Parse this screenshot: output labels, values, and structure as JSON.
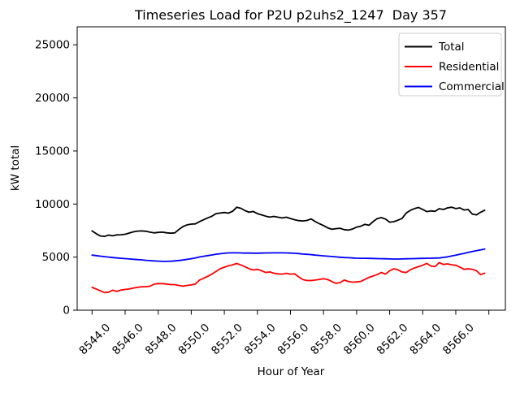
{
  "chart_data": {
    "type": "line",
    "title": "Timeseries Load for P2U p2uhs2_1247  Day 357",
    "xlabel": "Hour of Year",
    "ylabel": "kW total",
    "grid": false,
    "background": "#ffffff",
    "xlim": [
      8543.1,
      8569.0
    ],
    "ylim": [
      0,
      26700
    ],
    "yticks": [
      0,
      5000,
      10000,
      15000,
      20000,
      25000
    ],
    "ytick_labels": [
      "0",
      "5000",
      "10000",
      "15000",
      "20000",
      "25000"
    ],
    "xticks": [
      8544,
      8546,
      8548,
      8550,
      8552,
      8554,
      8556,
      8558,
      8560,
      8562,
      8564,
      8566
    ],
    "xtick_labels": [
      "8544.0",
      "8546.0",
      "8548.0",
      "8550.0",
      "8552.0",
      "8554.0",
      "8556.0",
      "8558.0",
      "8560.0",
      "8562.0",
      "8564.0",
      "8566.0"
    ],
    "xtick_marks": [
      8544,
      8546,
      8548,
      8550,
      8552,
      8554,
      8556,
      8558,
      8560,
      8562,
      8564,
      8566,
      8568
    ],
    "legend": {
      "position": "upper right",
      "entries": [
        "Total",
        "Residential",
        "Commercial"
      ]
    },
    "x": [
      8544.0,
      8544.25,
      8544.5,
      8544.75,
      8545.0,
      8545.25,
      8545.5,
      8545.75,
      8546.0,
      8546.25,
      8546.5,
      8546.75,
      8547.0,
      8547.25,
      8547.5,
      8547.75,
      8548.0,
      8548.25,
      8548.5,
      8548.75,
      8549.0,
      8549.25,
      8549.5,
      8549.75,
      8550.0,
      8550.25,
      8550.5,
      8550.75,
      8551.0,
      8551.25,
      8551.5,
      8551.75,
      8552.0,
      8552.25,
      8552.5,
      8552.75,
      8553.0,
      8553.25,
      8553.5,
      8553.75,
      8554.0,
      8554.25,
      8554.5,
      8554.75,
      8555.0,
      8555.25,
      8555.5,
      8555.75,
      8556.0,
      8556.25,
      8556.5,
      8556.75,
      8557.0,
      8557.25,
      8557.5,
      8557.75,
      8558.0,
      8558.25,
      8558.5,
      8558.75,
      8559.0,
      8559.25,
      8559.5,
      8559.75,
      8560.0,
      8560.25,
      8560.5,
      8560.75,
      8561.0,
      8561.25,
      8561.5,
      8561.75,
      8562.0,
      8562.25,
      8562.5,
      8562.75,
      8563.0,
      8563.25,
      8563.5,
      8563.75,
      8564.0,
      8564.25,
      8564.5,
      8564.75,
      8565.0,
      8565.25,
      8565.5,
      8565.75,
      8566.0,
      8566.25,
      8566.5,
      8566.75,
      8567.0,
      8567.25,
      8567.5,
      8567.75
    ],
    "series": [
      {
        "name": "Total",
        "color": "#000000",
        "values": [
          7470,
          7210,
          6990,
          6950,
          7080,
          7010,
          7090,
          7110,
          7150,
          7270,
          7380,
          7450,
          7470,
          7440,
          7350,
          7280,
          7330,
          7350,
          7290,
          7250,
          7280,
          7600,
          7880,
          8040,
          8110,
          8130,
          8350,
          8520,
          8700,
          8850,
          9100,
          9150,
          9200,
          9140,
          9320,
          9700,
          9600,
          9380,
          9230,
          9300,
          9100,
          8980,
          8860,
          8770,
          8840,
          8760,
          8690,
          8760,
          8640,
          8520,
          8440,
          8410,
          8450,
          8600,
          8350,
          8150,
          7970,
          7760,
          7620,
          7680,
          7720,
          7590,
          7540,
          7640,
          7830,
          7910,
          8090,
          8000,
          8350,
          8630,
          8720,
          8580,
          8290,
          8340,
          8480,
          8640,
          9150,
          9400,
          9570,
          9680,
          9480,
          9290,
          9360,
          9310,
          9560,
          9490,
          9640,
          9700,
          9570,
          9640,
          9440,
          9490,
          9060,
          8980,
          9230,
          9420
        ]
      },
      {
        "name": "Residential",
        "color": "#ff0000",
        "values": [
          2150,
          2000,
          1830,
          1650,
          1700,
          1880,
          1770,
          1900,
          1950,
          2000,
          2080,
          2150,
          2200,
          2210,
          2260,
          2450,
          2510,
          2500,
          2460,
          2410,
          2410,
          2330,
          2260,
          2330,
          2380,
          2460,
          2840,
          3010,
          3190,
          3400,
          3650,
          3900,
          4050,
          4180,
          4280,
          4400,
          4260,
          4100,
          3900,
          3790,
          3850,
          3720,
          3550,
          3600,
          3480,
          3420,
          3400,
          3470,
          3400,
          3430,
          3140,
          2890,
          2790,
          2790,
          2840,
          2900,
          2960,
          2890,
          2700,
          2530,
          2590,
          2840,
          2710,
          2640,
          2660,
          2710,
          2890,
          3090,
          3220,
          3350,
          3550,
          3400,
          3720,
          3900,
          3800,
          3600,
          3550,
          3800,
          3980,
          4100,
          4240,
          4410,
          4160,
          4100,
          4480,
          4310,
          4360,
          4280,
          4230,
          4060,
          3850,
          3900,
          3850,
          3720,
          3350,
          3480
        ]
      },
      {
        "name": "Commercial",
        "color": "#0000ff",
        "values": [
          5190,
          5140,
          5090,
          5040,
          5000,
          4960,
          4920,
          4890,
          4860,
          4830,
          4800,
          4770,
          4740,
          4700,
          4670,
          4640,
          4620,
          4600,
          4600,
          4610,
          4640,
          4680,
          4730,
          4790,
          4850,
          4930,
          5010,
          5080,
          5140,
          5200,
          5270,
          5320,
          5360,
          5390,
          5400,
          5400,
          5390,
          5380,
          5380,
          5370,
          5370,
          5380,
          5390,
          5390,
          5400,
          5400,
          5400,
          5390,
          5380,
          5360,
          5330,
          5290,
          5260,
          5230,
          5190,
          5160,
          5120,
          5090,
          5060,
          5020,
          4990,
          4960,
          4940,
          4920,
          4900,
          4890,
          4890,
          4880,
          4870,
          4860,
          4850,
          4840,
          4830,
          4820,
          4820,
          4830,
          4840,
          4850,
          4860,
          4870,
          4880,
          4890,
          4900,
          4910,
          4920,
          4970,
          5030,
          5110,
          5190,
          5270,
          5350,
          5440,
          5520,
          5600,
          5680,
          5760
        ]
      }
    ]
  }
}
